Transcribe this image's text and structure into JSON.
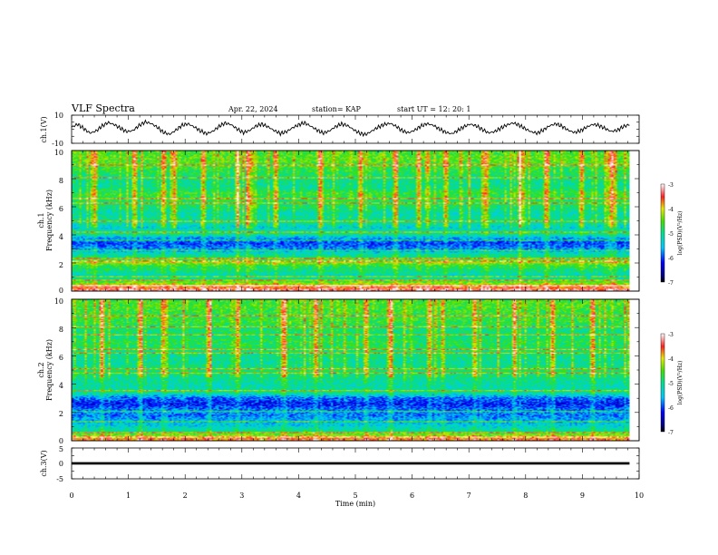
{
  "header": {
    "title": "VLF Spectra",
    "date": "Apr. 22, 2024",
    "station": "station= KAP",
    "start_time": "start  UT  =   12: 20: 1"
  },
  "chart_data": [
    {
      "id": "ch1-waveform",
      "type": "line",
      "ylabel": "ch.1(V)",
      "ylim": [
        -10,
        10
      ],
      "yticks": [
        "10",
        "-10"
      ],
      "xlim": [
        0,
        10
      ],
      "x_extent_min": 9.83,
      "series": [
        {
          "values": [
            1.5,
            3.6,
            0.4,
            -2.8,
            -1.2,
            2.4,
            4.8,
            3.2,
            0.6,
            -1.8,
            -0.9,
            2.6,
            5.2,
            4.1,
            1.3,
            -2.2,
            -3.6,
            -0.7,
            2.8,
            3.9,
            1.6,
            -1.1,
            -3.2,
            -1.6,
            1.9,
            4.4,
            3.3,
            0.2,
            -2.4,
            -1.0,
            2.1,
            3.7,
            1.8,
            -0.8,
            -3.0,
            -1.9,
            0.9,
            3.1,
            4.6,
            2.2,
            -0.5,
            -2.7,
            -1.4,
            1.7,
            3.8,
            2.6,
            -0.3,
            -2.9,
            -3.8,
            -1.2,
            1.5,
            3.4,
            4.2,
            1.9,
            -1.3,
            -2.5,
            -0.6,
            2.3,
            4.0,
            2.8,
            0.1,
            -2.1,
            -3.3,
            -0.9,
            1.8,
            3.6,
            2.4,
            -0.2,
            -2.6,
            -1.7,
            0.8,
            3.0,
            4.5,
            2.9,
            0.4,
            -1.9,
            -2.8,
            -0.4,
            2.5,
            3.9,
            2.1,
            -0.7,
            -2.3,
            -1.1,
            1.4,
            3.5,
            2.7,
            0.6,
            -1.5,
            -0.8,
            1.9,
            3.3
          ]
        }
      ]
    },
    {
      "id": "ch1-spectrogram",
      "type": "heatmap",
      "ylabel": "ch.1",
      "ylabel2": "Frequency (kHz)",
      "ylim": [
        0,
        10
      ],
      "yticks": [
        "0",
        "2",
        "4",
        "6",
        "8",
        "10"
      ],
      "xlim": [
        0,
        10
      ],
      "x_extent_min": 9.83,
      "colorbar": {
        "label": "log(PSD)(V²/Hz)",
        "range": [
          -7,
          -3
        ],
        "ticks": [
          "-3",
          "-4",
          "-5",
          "-6",
          "-7"
        ]
      },
      "band_levels": [
        [
          0.0,
          -3.3
        ],
        [
          0.3,
          -3.8
        ],
        [
          0.6,
          -4.6
        ],
        [
          1.0,
          -5.3
        ],
        [
          1.4,
          -5.0
        ],
        [
          1.8,
          -4.7
        ],
        [
          2.0,
          -4.2
        ],
        [
          2.3,
          -4.8
        ],
        [
          2.6,
          -5.2
        ],
        [
          3.0,
          -5.8
        ],
        [
          3.4,
          -6.1
        ],
        [
          3.8,
          -5.6
        ],
        [
          4.1,
          -4.9
        ],
        [
          4.5,
          -5.4
        ],
        [
          5.0,
          -5.0
        ],
        [
          5.5,
          -5.2
        ],
        [
          6.0,
          -4.9
        ],
        [
          6.5,
          -4.8
        ],
        [
          7.0,
          -4.7
        ],
        [
          7.5,
          -5.1
        ],
        [
          8.0,
          -5.0
        ],
        [
          8.5,
          -4.8
        ],
        [
          9.0,
          -4.6
        ],
        [
          9.5,
          -4.5
        ],
        [
          10.0,
          -4.6
        ]
      ],
      "narrowband_lines_khz": [
        0.3,
        0.7,
        1.0,
        2.1,
        2.3,
        2.9,
        3.6,
        4.2,
        5.0,
        6.3,
        6.6,
        8.1,
        9.0
      ],
      "strong_sferic_columns_min": [
        0.4,
        1.1,
        1.6,
        1.8,
        2.3,
        2.9,
        3.1,
        3.6,
        4.4,
        5.1,
        5.7,
        6.1,
        6.6,
        7.3,
        7.9,
        8.4,
        9.0,
        9.5
      ]
    },
    {
      "id": "ch2-spectrogram",
      "type": "heatmap",
      "ylabel": "ch.2",
      "ylabel2": "Frequency (kHz)",
      "ylim": [
        0,
        10
      ],
      "yticks": [
        "0",
        "2",
        "4",
        "6",
        "8",
        "10"
      ],
      "xlim": [
        0,
        10
      ],
      "x_extent_min": 9.83,
      "colorbar": {
        "label": "log(PSD)(V²/Hz)",
        "range": [
          -7,
          -3
        ],
        "ticks": [
          "-3",
          "-4",
          "-5",
          "-6",
          "-7"
        ]
      },
      "band_levels": [
        [
          0.0,
          -3.6
        ],
        [
          0.3,
          -4.2
        ],
        [
          0.6,
          -5.0
        ],
        [
          1.0,
          -5.4
        ],
        [
          1.4,
          -5.6
        ],
        [
          1.8,
          -5.9
        ],
        [
          2.0,
          -5.7
        ],
        [
          2.3,
          -6.0
        ],
        [
          2.6,
          -6.2
        ],
        [
          3.0,
          -5.9
        ],
        [
          3.4,
          -5.0
        ],
        [
          3.8,
          -5.2
        ],
        [
          4.1,
          -5.1
        ],
        [
          4.5,
          -5.0
        ],
        [
          5.0,
          -4.9
        ],
        [
          5.5,
          -5.1
        ],
        [
          6.0,
          -5.0
        ],
        [
          6.5,
          -4.9
        ],
        [
          7.0,
          -4.8
        ],
        [
          7.5,
          -5.0
        ],
        [
          8.0,
          -4.9
        ],
        [
          8.5,
          -4.7
        ],
        [
          9.0,
          -4.7
        ],
        [
          9.5,
          -4.6
        ],
        [
          10.0,
          -4.6
        ]
      ],
      "narrowband_lines_khz": [
        0.2,
        0.5,
        1.3,
        2.0,
        3.5,
        4.8,
        5.1,
        6.2,
        6.5,
        7.5,
        8.1,
        8.9
      ],
      "strong_sferic_columns_min": [
        0.5,
        1.2,
        1.6,
        2.4,
        2.9,
        3.7,
        4.3,
        5.2,
        5.6,
        6.3,
        7.1,
        7.8,
        8.5,
        9.2
      ]
    },
    {
      "id": "ch3-waveform",
      "type": "line",
      "ylabel": "ch.3(V)",
      "ylim": [
        -5,
        5
      ],
      "yticks": [
        "5",
        "0",
        "-5"
      ],
      "xlim": [
        0,
        10
      ],
      "x_extent_min": 9.83,
      "series": [
        {
          "values": [
            0.0,
            0.0
          ]
        }
      ],
      "band_halfwidth_v": 0.4
    }
  ],
  "xaxis": {
    "label": "Time  (min)",
    "ticks": [
      "0",
      "1",
      "2",
      "3",
      "4",
      "5",
      "6",
      "7",
      "8",
      "9",
      "10"
    ]
  }
}
